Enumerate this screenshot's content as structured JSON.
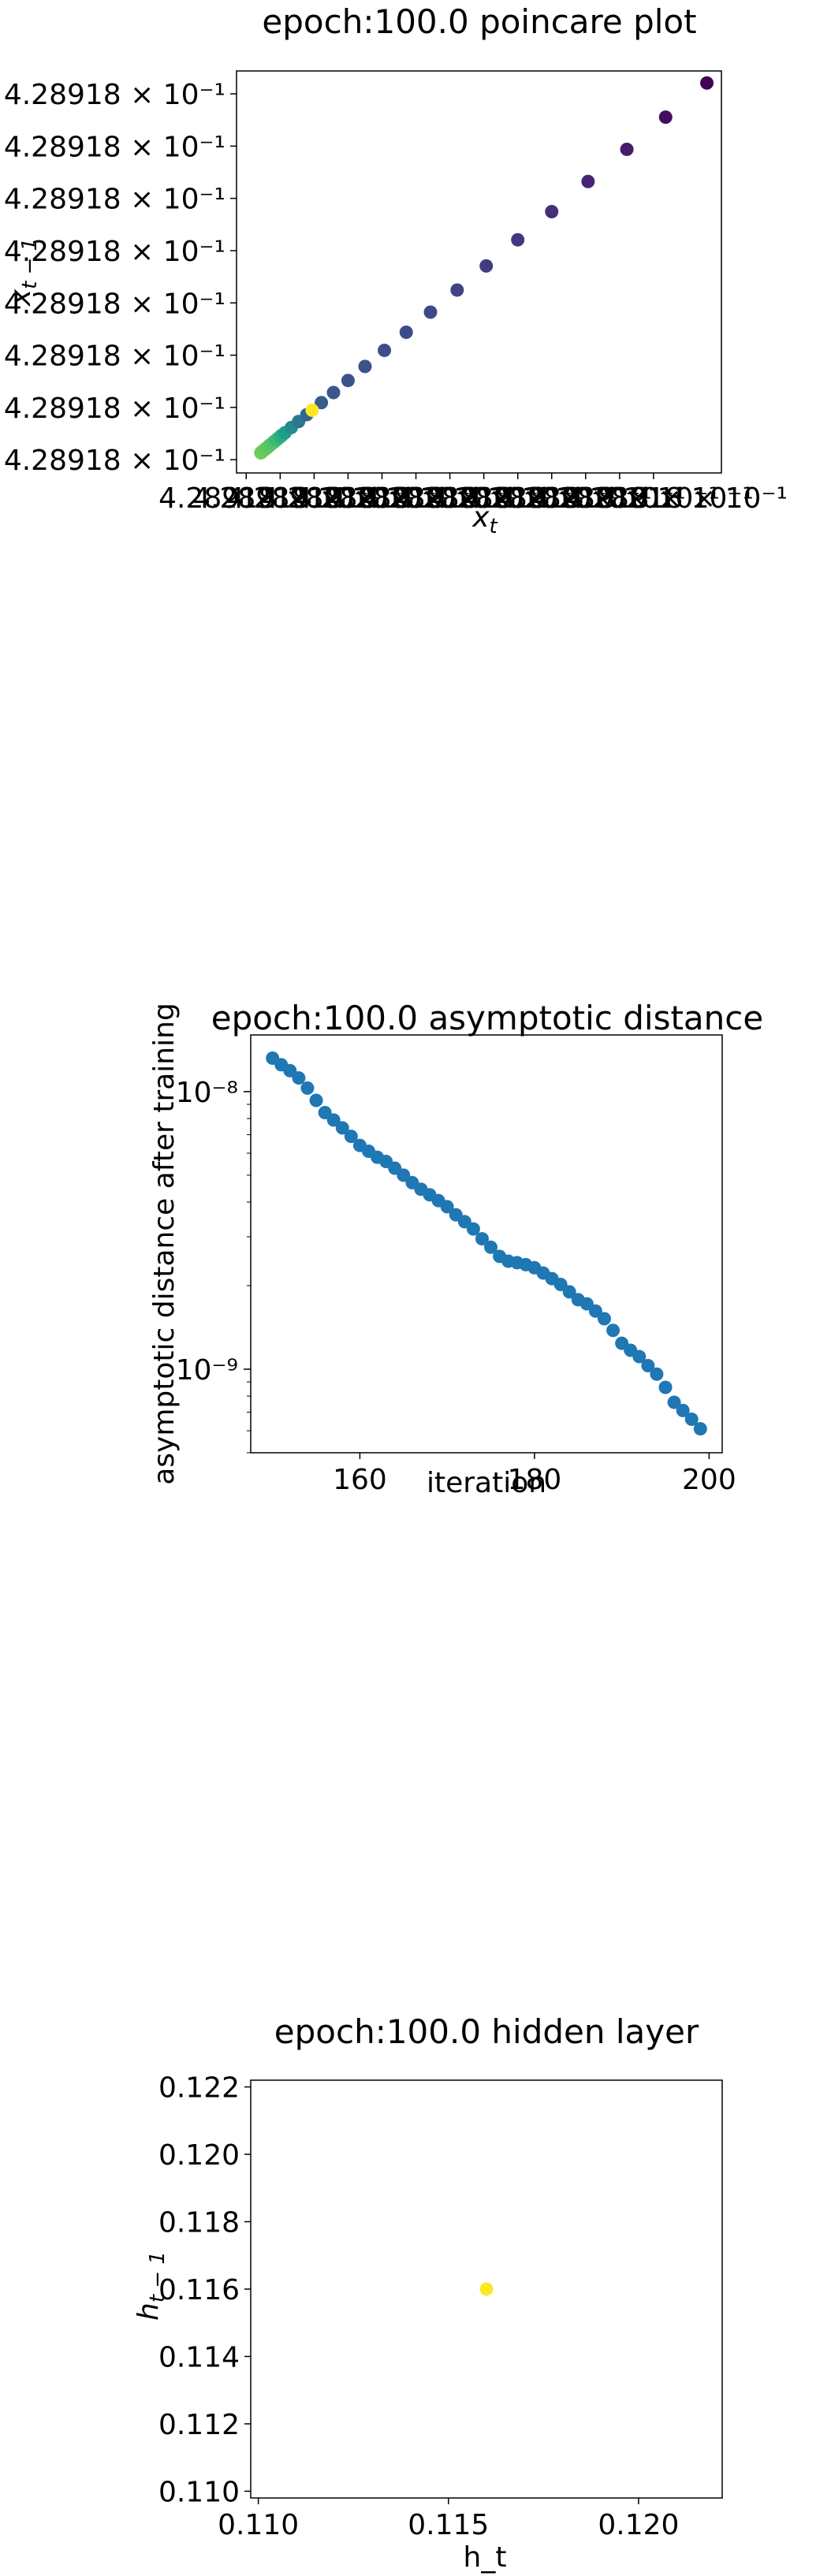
{
  "chart_data": [
    {
      "type": "scatter",
      "title": "epoch:100.0 poincare plot",
      "xlabel": "x_t",
      "ylabel": "x_{t-1}",
      "colormap": "viridis",
      "y_tick_labels": [
        "4.28918 × 10⁻¹",
        "4.28918 × 10⁻¹",
        "4.28918 × 10⁻¹",
        "4.28918 × 10⁻¹",
        "4.28918 × 10⁻¹",
        "4.28918 × 10⁻¹",
        "4.28918 × 10⁻¹",
        "4.28918 × 10⁻¹"
      ],
      "x_tick_labels": [
        "4.28918 × 10⁻¹",
        "4.28918 × 10⁻¹",
        "4.28918 × 10⁻¹",
        "4.28918 × 10⁻¹",
        "4.28918 × 10⁻¹",
        "4.28918 × 10⁻¹",
        "4.28918 × 10⁻¹",
        "4.28918 × 10⁻¹",
        "4.28918 × 10⁻¹",
        "4.28918 × 10⁻¹",
        "4.28918 × 10⁻¹",
        "4.28918 × 10⁻¹",
        "4.28918 × 10⁻¹"
      ],
      "x_ticks": [
        0.02,
        0.09,
        0.16,
        0.23,
        0.3,
        0.37,
        0.44,
        0.51,
        0.58,
        0.65,
        0.72,
        0.79,
        0.86
      ],
      "y_ticks": [
        0.033,
        0.163,
        0.293,
        0.423,
        0.553,
        0.683,
        0.813,
        0.943
      ],
      "points": [
        {
          "x": 0.05,
          "y": 0.05,
          "c": 0.78
        },
        {
          "x": 0.058,
          "y": 0.058,
          "c": 0.76
        },
        {
          "x": 0.066,
          "y": 0.066,
          "c": 0.74
        },
        {
          "x": 0.074,
          "y": 0.074,
          "c": 0.72
        },
        {
          "x": 0.082,
          "y": 0.082,
          "c": 0.68
        },
        {
          "x": 0.09,
          "y": 0.09,
          "c": 0.62
        },
        {
          "x": 0.1,
          "y": 0.1,
          "c": 0.55
        },
        {
          "x": 0.113,
          "y": 0.113,
          "c": 0.48
        },
        {
          "x": 0.128,
          "y": 0.128,
          "c": 0.4
        },
        {
          "x": 0.145,
          "y": 0.145,
          "c": 0.33
        },
        {
          "x": 0.156,
          "y": 0.156,
          "c": 1.0
        },
        {
          "x": 0.175,
          "y": 0.175,
          "c": 0.29
        },
        {
          "x": 0.2,
          "y": 0.2,
          "c": 0.27
        },
        {
          "x": 0.23,
          "y": 0.23,
          "c": 0.26
        },
        {
          "x": 0.265,
          "y": 0.265,
          "c": 0.25
        },
        {
          "x": 0.305,
          "y": 0.305,
          "c": 0.24
        },
        {
          "x": 0.35,
          "y": 0.35,
          "c": 0.23
        },
        {
          "x": 0.4,
          "y": 0.4,
          "c": 0.22
        },
        {
          "x": 0.455,
          "y": 0.455,
          "c": 0.2
        },
        {
          "x": 0.515,
          "y": 0.515,
          "c": 0.18
        },
        {
          "x": 0.58,
          "y": 0.58,
          "c": 0.16
        },
        {
          "x": 0.65,
          "y": 0.65,
          "c": 0.13
        },
        {
          "x": 0.725,
          "y": 0.725,
          "c": 0.1
        },
        {
          "x": 0.805,
          "y": 0.805,
          "c": 0.07
        },
        {
          "x": 0.885,
          "y": 0.885,
          "c": 0.04
        },
        {
          "x": 0.97,
          "y": 0.97,
          "c": 0.0
        }
      ],
      "extra_tick_text": "1",
      "cluster_offsets": [
        0.002,
        0.004,
        0.006,
        0.008,
        0.01,
        0.012
      ]
    },
    {
      "type": "scatter",
      "title": "epoch:100.0 asymptotic distance",
      "xlabel": "iteration",
      "ylabel": "asymptotic distance after training",
      "yscale": "log",
      "color": "#1f77b4",
      "xlim": [
        147.5,
        201.5
      ],
      "ylim": [
        5e-10,
        1.6e-08
      ],
      "x_ticks": [
        160,
        180,
        200
      ],
      "y_ticks": [
        {
          "value": 1e-08,
          "label": "10⁻⁸"
        },
        {
          "value": 1e-09,
          "label": "10⁻⁹"
        }
      ],
      "x": [
        150,
        151,
        152,
        153,
        154,
        155,
        156,
        157,
        158,
        159,
        160,
        161,
        162,
        163,
        164,
        165,
        166,
        167,
        168,
        169,
        170,
        171,
        172,
        173,
        174,
        175,
        176,
        177,
        178,
        179,
        180,
        181,
        182,
        183,
        184,
        185,
        186,
        187,
        188,
        189,
        190,
        191,
        192,
        193,
        194,
        195,
        196,
        197,
        198,
        199
      ],
      "y": [
        1.32e-08,
        1.25e-08,
        1.19e-08,
        1.12e-08,
        1.03e-08,
        9.3e-09,
        8.4e-09,
        7.9e-09,
        7.4e-09,
        6.9e-09,
        6.4e-09,
        6.1e-09,
        5.8e-09,
        5.6e-09,
        5.3e-09,
        5e-09,
        4.7e-09,
        4.45e-09,
        4.25e-09,
        4.05e-09,
        3.85e-09,
        3.6e-09,
        3.4e-09,
        3.2e-09,
        2.95e-09,
        2.75e-09,
        2.55e-09,
        2.45e-09,
        2.42e-09,
        2.38e-09,
        2.32e-09,
        2.22e-09,
        2.12e-09,
        2.02e-09,
        1.9e-09,
        1.78e-09,
        1.72e-09,
        1.62e-09,
        1.52e-09,
        1.38e-09,
        1.24e-09,
        1.17e-09,
        1.11e-09,
        1.03e-09,
        9.6e-10,
        8.6e-10,
        7.6e-10,
        7.1e-10,
        6.6e-10,
        6.1e-10
      ]
    },
    {
      "type": "scatter",
      "title": "epoch:100.0 hidden layer",
      "xlabel": "h_t",
      "ylabel": "h_{t-1}",
      "xlim": [
        0.1098,
        0.1222
      ],
      "ylim": [
        0.1098,
        0.1222
      ],
      "x_ticks": [
        0.11,
        0.115,
        0.12
      ],
      "y_ticks": [
        0.11,
        0.112,
        0.114,
        0.116,
        0.118,
        0.12,
        0.122
      ],
      "points": [
        {
          "x": 0.116,
          "y": 0.116,
          "color": "#fde725"
        }
      ]
    }
  ]
}
